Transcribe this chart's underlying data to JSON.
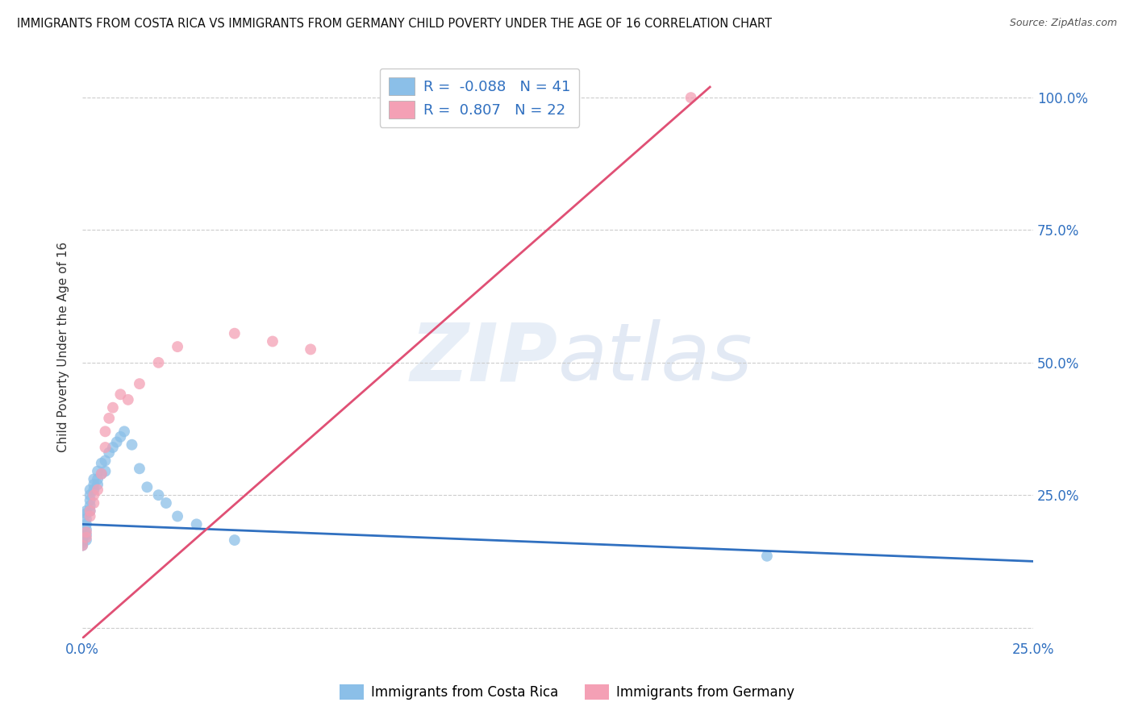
{
  "title": "IMMIGRANTS FROM COSTA RICA VS IMMIGRANTS FROM GERMANY CHILD POVERTY UNDER THE AGE OF 16 CORRELATION CHART",
  "source": "Source: ZipAtlas.com",
  "ylabel": "Child Poverty Under the Age of 16",
  "watermark": "ZIPatlas",
  "xlim": [
    0.0,
    0.25
  ],
  "ylim": [
    -0.02,
    1.08
  ],
  "xticks": [
    0.0,
    0.05,
    0.1,
    0.15,
    0.2,
    0.25
  ],
  "xticklabels": [
    "0.0%",
    "",
    "",
    "",
    "",
    "25.0%"
  ],
  "ytick_positions": [
    0.0,
    0.25,
    0.5,
    0.75,
    1.0
  ],
  "yticklabels_right": [
    "",
    "25.0%",
    "50.0%",
    "75.0%",
    "100.0%"
  ],
  "series": [
    {
      "name": "Immigrants from Costa Rica",
      "color": "#8BBFE8",
      "R": -0.088,
      "N": 41,
      "line_color": "#3070C0",
      "scatter_x": [
        0.0,
        0.0,
        0.0,
        0.0,
        0.0,
        0.001,
        0.001,
        0.001,
        0.001,
        0.001,
        0.001,
        0.001,
        0.002,
        0.002,
        0.002,
        0.002,
        0.002,
        0.003,
        0.003,
        0.003,
        0.004,
        0.004,
        0.004,
        0.005,
        0.005,
        0.006,
        0.006,
        0.007,
        0.008,
        0.009,
        0.01,
        0.011,
        0.013,
        0.015,
        0.017,
        0.02,
        0.022,
        0.025,
        0.03,
        0.04,
        0.18
      ],
      "scatter_y": [
        0.155,
        0.16,
        0.165,
        0.17,
        0.175,
        0.165,
        0.175,
        0.185,
        0.195,
        0.205,
        0.215,
        0.22,
        0.22,
        0.23,
        0.24,
        0.25,
        0.26,
        0.26,
        0.27,
        0.28,
        0.27,
        0.28,
        0.295,
        0.29,
        0.31,
        0.295,
        0.315,
        0.33,
        0.34,
        0.35,
        0.36,
        0.37,
        0.345,
        0.3,
        0.265,
        0.25,
        0.235,
        0.21,
        0.195,
        0.165,
        0.135
      ],
      "line_x0": 0.0,
      "line_y0": 0.195,
      "line_x1": 0.25,
      "line_y1": 0.125
    },
    {
      "name": "Immigrants from Germany",
      "color": "#F4A0B5",
      "R": 0.807,
      "N": 22,
      "line_color": "#E05075",
      "scatter_x": [
        0.0,
        0.001,
        0.001,
        0.002,
        0.002,
        0.003,
        0.003,
        0.004,
        0.005,
        0.006,
        0.006,
        0.007,
        0.008,
        0.01,
        0.012,
        0.015,
        0.02,
        0.025,
        0.04,
        0.05,
        0.06,
        0.16
      ],
      "scatter_y": [
        0.155,
        0.17,
        0.18,
        0.21,
        0.22,
        0.235,
        0.25,
        0.26,
        0.29,
        0.34,
        0.37,
        0.395,
        0.415,
        0.44,
        0.43,
        0.46,
        0.5,
        0.53,
        0.555,
        0.54,
        0.525,
        1.0
      ],
      "line_x0": 0.0,
      "line_y0": -0.02,
      "line_x1": 0.165,
      "line_y1": 1.02
    }
  ],
  "background_color": "#ffffff",
  "grid_color": "#cccccc"
}
